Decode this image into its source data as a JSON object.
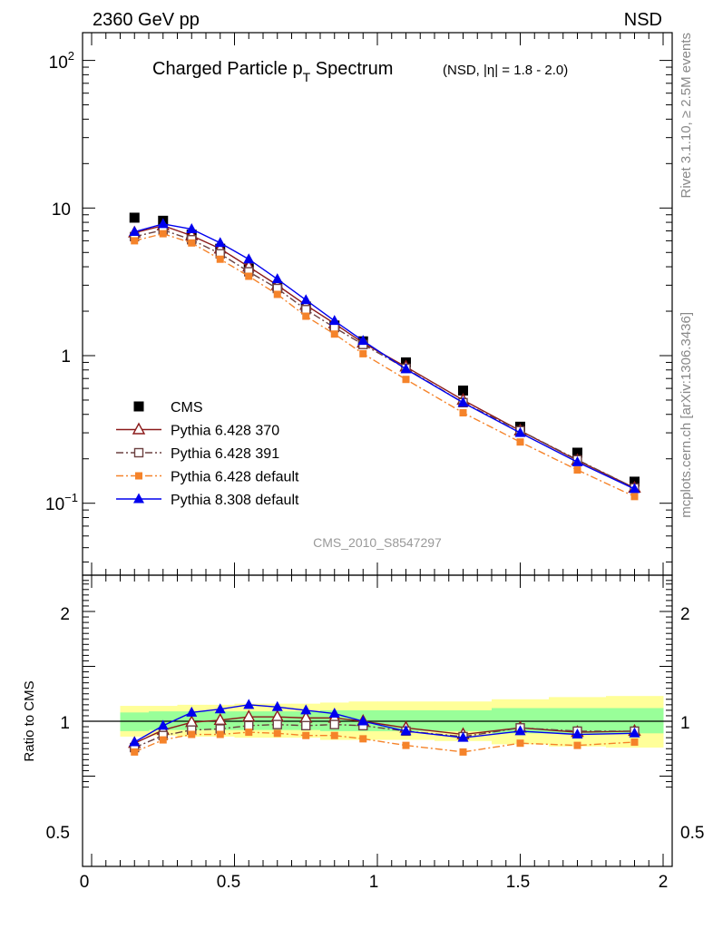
{
  "header": {
    "left": "2360 GeV pp",
    "right": "NSD"
  },
  "side_labels": {
    "rivet": "Rivet 3.1.10, ≥ 2.5M events",
    "mcplots": "mcplots.cern.ch [arXiv:1306.3436]"
  },
  "colors": {
    "cms": "#000000",
    "py6_370": "#8b1a1a",
    "py6_391": "#6b4040",
    "py6_default": "#f5832a",
    "py8_default": "#0000ee",
    "band_inner": "#99ff99",
    "band_outer": "#ffff99"
  },
  "chart_data": [
    {
      "type": "scatter",
      "title": "Charged Particle p",
      "title_sub": "T",
      "title_tail": " Spectrum",
      "title_note": "(NSD, |η| = 1.8 - 2.0)",
      "watermark": "CMS_2010_S8547297",
      "xlim": [
        0,
        2
      ],
      "ylim": [
        0.03,
        160
      ],
      "yscale": "log",
      "ytick_labels": {
        "major": [
          "10",
          "1"
        ],
        "pow_high": {
          "base": "10",
          "exp": "2"
        },
        "pow_low": {
          "base": "10",
          "exp": "−1"
        }
      },
      "legend_position": "bottom-left",
      "x": [
        0.15,
        0.25,
        0.35,
        0.45,
        0.55,
        0.65,
        0.75,
        0.85,
        0.95,
        1.1,
        1.3,
        1.5,
        1.7,
        1.9
      ],
      "series": [
        {
          "name": "CMS",
          "key": "cms",
          "marker": "square-filled",
          "line": "none",
          "values": [
            8.6,
            8.2,
            6.6,
            5.3,
            3.9,
            2.95,
            2.15,
            1.6,
            1.25,
            0.9,
            0.58,
            0.33,
            0.22,
            0.14
          ]
        },
        {
          "name": "Pythia 6.428 370",
          "key": "py6_370",
          "marker": "triangle-open",
          "line": "solid",
          "values": [
            6.8,
            7.6,
            6.5,
            5.3,
            4.0,
            3.0,
            2.2,
            1.65,
            1.22,
            0.84,
            0.5,
            0.31,
            0.195,
            0.127
          ]
        },
        {
          "name": "Pythia 6.428 391",
          "key": "py6_391",
          "marker": "square-open",
          "line": "dashdot",
          "values": [
            6.4,
            7.1,
            6.1,
            4.9,
            3.7,
            2.85,
            2.05,
            1.55,
            1.19,
            0.82,
            0.48,
            0.31,
            0.197,
            0.127
          ]
        },
        {
          "name": "Pythia 6.428 default",
          "key": "py6_default",
          "marker": "square-filled-small",
          "line": "dashdot",
          "values": [
            6.0,
            6.7,
            5.8,
            4.5,
            3.45,
            2.6,
            1.85,
            1.4,
            1.03,
            0.69,
            0.41,
            0.26,
            0.168,
            0.111
          ]
        },
        {
          "name": "Pythia 8.308 default",
          "key": "py8_default",
          "marker": "triangle-filled",
          "line": "solid",
          "values": [
            6.9,
            7.8,
            7.2,
            5.8,
            4.5,
            3.3,
            2.38,
            1.72,
            1.26,
            0.81,
            0.48,
            0.3,
            0.19,
            0.125
          ]
        }
      ]
    },
    {
      "type": "line",
      "ylabel": "Ratio to CMS",
      "xlim": [
        0,
        2
      ],
      "ylim": [
        0.35,
        2.3
      ],
      "xtick_labels": [
        "0",
        "0.5",
        "1",
        "1.5",
        "2"
      ],
      "ytick_labels": [
        "0.5",
        "1",
        "2"
      ],
      "reference": 1,
      "bands": {
        "edges": [
          0.1,
          0.2,
          0.3,
          0.4,
          0.5,
          0.6,
          0.7,
          0.8,
          0.9,
          1.0,
          1.2,
          1.4,
          1.6,
          1.8,
          2.0
        ],
        "inner_lo": [
          0.91,
          0.92,
          0.92,
          0.92,
          0.92,
          0.92,
          0.92,
          0.91,
          0.91,
          0.91,
          0.91,
          0.89,
          0.89,
          0.89
        ],
        "inner_hi": [
          1.08,
          1.09,
          1.09,
          1.09,
          1.09,
          1.09,
          1.09,
          1.1,
          1.1,
          1.1,
          1.1,
          1.12,
          1.12,
          1.12
        ],
        "outer_lo": [
          0.86,
          0.87,
          0.86,
          0.86,
          0.85,
          0.85,
          0.85,
          0.83,
          0.83,
          0.83,
          0.82,
          0.79,
          0.77,
          0.76
        ],
        "outer_hi": [
          1.14,
          1.14,
          1.15,
          1.15,
          1.16,
          1.16,
          1.16,
          1.17,
          1.18,
          1.18,
          1.18,
          1.2,
          1.22,
          1.23
        ]
      },
      "x": [
        0.15,
        0.25,
        0.35,
        0.45,
        0.55,
        0.65,
        0.75,
        0.85,
        0.95,
        1.1,
        1.3,
        1.5,
        1.7,
        1.9
      ],
      "series": [
        {
          "key": "py6_370",
          "marker": "triangle-open",
          "line": "solid",
          "values": [
            0.8,
            0.92,
            0.99,
            1.01,
            1.04,
            1.04,
            1.03,
            1.03,
            1.0,
            0.94,
            0.88,
            0.94,
            0.9,
            0.91
          ]
        },
        {
          "key": "py6_391",
          "marker": "square-open",
          "line": "dashdot",
          "values": [
            0.76,
            0.87,
            0.92,
            0.93,
            0.96,
            0.97,
            0.96,
            0.97,
            0.96,
            0.91,
            0.86,
            0.94,
            0.91,
            0.91
          ]
        },
        {
          "key": "py6_default",
          "marker": "square-filled-small",
          "line": "dashdot",
          "values": [
            0.72,
            0.83,
            0.88,
            0.88,
            0.9,
            0.89,
            0.87,
            0.87,
            0.84,
            0.78,
            0.72,
            0.8,
            0.78,
            0.81
          ]
        },
        {
          "key": "py8_default",
          "marker": "triangle-filled",
          "line": "solid",
          "values": [
            0.81,
            0.96,
            1.08,
            1.11,
            1.15,
            1.13,
            1.1,
            1.07,
            1.0,
            0.91,
            0.85,
            0.91,
            0.88,
            0.89
          ]
        }
      ]
    }
  ]
}
